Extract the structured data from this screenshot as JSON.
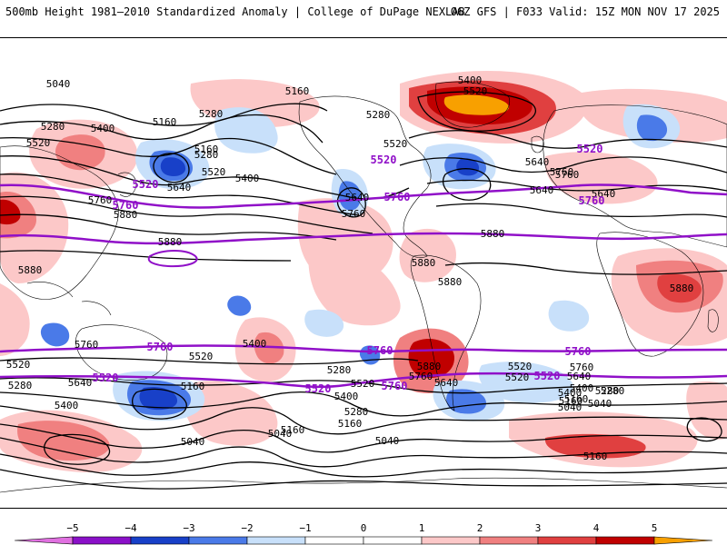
{
  "header": {
    "title_left": "500mb Height 1981–2010 Standardized Anomaly | College of DuPage NEXLAB",
    "title_right": "06Z GFS | F033 Valid: 15Z MON NOV 17 2025"
  },
  "colors": {
    "anom_neg_5": "#e070e0",
    "anom_neg_4": "#8a10c8",
    "anom_neg_3": "#1840c8",
    "anom_neg_2": "#4a7ae8",
    "anom_neg_1": "#c8e0fa",
    "anom_pos_1": "#fcc8c8",
    "anom_pos_2": "#f08080",
    "anom_pos_3": "#e04040",
    "anom_pos_4": "#c00000",
    "anom_pos_5": "#f8a000",
    "contour_line": "#000000",
    "highlight_contour": "#9010c8",
    "land_border": "#000000"
  },
  "colorbar": {
    "ticks": [
      "−5",
      "−4",
      "−3",
      "−2",
      "−1",
      "0",
      "1",
      "2",
      "3",
      "4",
      "5"
    ]
  },
  "contour_labels": [
    "5040",
    "5160",
    "5280",
    "5520",
    "5400",
    "5160",
    "5280",
    "5400",
    "5520",
    "5640",
    "5760",
    "5880",
    "5880",
    "5880",
    "5400",
    "5520",
    "5280",
    "5160",
    "5280",
    "5520",
    "5640",
    "5760",
    "5640",
    "5880",
    "5880",
    "5880",
    "5760",
    "5640",
    "5880",
    "5760",
    "5520",
    "5400",
    "5280",
    "5160",
    "5040",
    "5640",
    "5520",
    "5400",
    "5280",
    "5160",
    "5040",
    "5040",
    "5160",
    "5280",
    "5400",
    "5520",
    "5640",
    "5760",
    "5880",
    "5760",
    "5640",
    "5520",
    "5400",
    "5280",
    "5160",
    "5040",
    "5160",
    "5640",
    "5760",
    "5520",
    "5400",
    "5280",
    "5160",
    "5040"
  ],
  "highlight_labels": [
    "5520",
    "5760",
    "5520",
    "5760",
    "5520",
    "5760",
    "5760",
    "5760",
    "5760",
    "5520",
    "5520",
    "5760",
    "5520"
  ]
}
